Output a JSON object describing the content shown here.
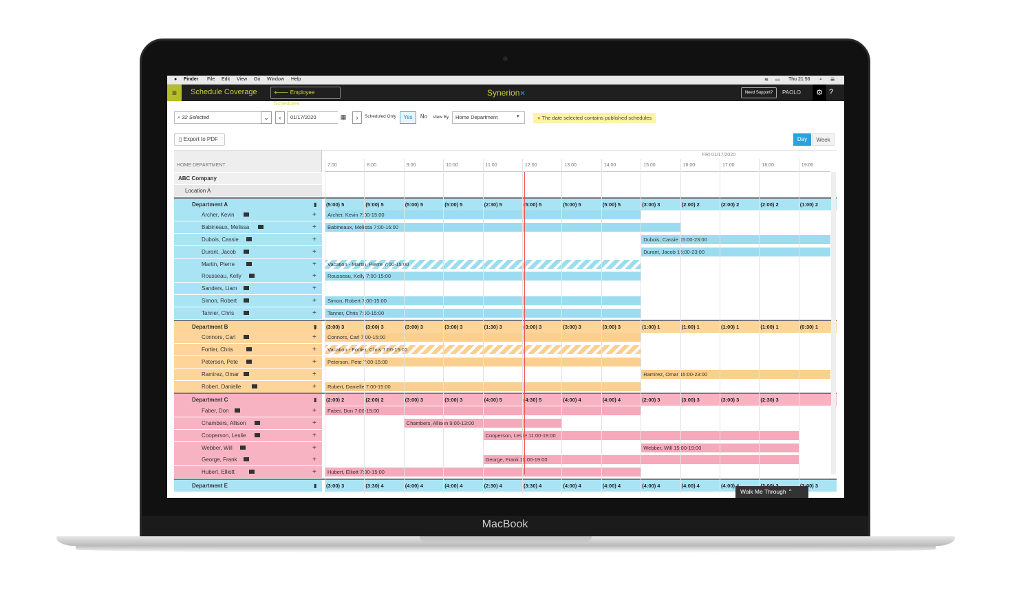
{
  "device": {
    "label": "MacBook"
  },
  "macbar": {
    "apple": "",
    "items": [
      "Finder",
      "File",
      "Edit",
      "View",
      "Go",
      "Window",
      "Help"
    ],
    "clock": "Thu 21:56"
  },
  "app": {
    "title": "Schedule Coverage",
    "back_button": "Employee Schedules",
    "logo": "Synerion",
    "support": "Need Support?",
    "user": "PAOLO",
    "help": "?"
  },
  "filters": {
    "selection": "32 Selected",
    "date": "01/17/2020",
    "scheduled_only_label": "Scheduled Only",
    "yes": "Yes",
    "no": "No",
    "view_by_label": "View By",
    "view_by_value": "Home Department",
    "notice": "The date selected contains published schedules"
  },
  "toolbar": {
    "export": "Export to PDF",
    "day": "Day",
    "week": "Week"
  },
  "grid": {
    "left_header": "HOME DEPARTMENT",
    "date_label": "FRI 01/17/2020",
    "hours": [
      "7:00",
      "8:00",
      "9:00",
      "10:00",
      "11:00",
      "12:00",
      "13:00",
      "14:00",
      "15:00",
      "16:00",
      "17:00",
      "18:00",
      "19:00"
    ]
  },
  "tree": {
    "company": "ABC Company",
    "location": "Location A"
  },
  "departments": [
    {
      "name": "Department A",
      "color": "#a9e4f5",
      "barColor": "#9cdcf0",
      "counts": [
        "(5:00) 5",
        "(5:00) 5",
        "(5:00) 5",
        "(5:00) 5",
        "(2:30) 5",
        "(5:00) 5",
        "(5:00) 5",
        "(5:00) 5",
        "(3:00) 3",
        "(2:00) 2",
        "(2:00) 2",
        "(2:00) 2",
        "(1:00) 2"
      ],
      "employees": [
        {
          "name": "Archer, Kevin",
          "shift": "Archer, Kevin   7:00-15:00",
          "start": 7,
          "end": 15,
          "vac": false
        },
        {
          "name": "Babineaux, Melissa",
          "shift": "Babineaux, Melissa   7:00-16:00",
          "start": 7,
          "end": 16,
          "vac": false
        },
        {
          "name": "Dubois, Cassie",
          "shift": "Dubois, Cassie   15:00-23:00",
          "start": 15,
          "end": 19.8,
          "vac": false
        },
        {
          "name": "Durant, Jacob",
          "shift": "Durant, Jacob   15:00-23:00",
          "start": 15,
          "end": 19.8,
          "vac": false
        },
        {
          "name": "Martin, Pierre",
          "shift": "Vacation - Martin, Pierre   7:00-15:00",
          "start": 7,
          "end": 15,
          "vac": true
        },
        {
          "name": "Rousseau, Kelly",
          "shift": "Rousseau, Kelly   7:00-15:00",
          "start": 7,
          "end": 15,
          "vac": false
        },
        {
          "name": "Sanders, Liam",
          "shift": "",
          "start": 0,
          "end": 0,
          "vac": false
        },
        {
          "name": "Simon, Robert",
          "shift": "Simon, Robert   7:00-15:00",
          "start": 7,
          "end": 15,
          "vac": false
        },
        {
          "name": "Tanner, Chris",
          "shift": "Tanner, Chris   7:00-15:00",
          "start": 7,
          "end": 15,
          "vac": false
        }
      ]
    },
    {
      "name": "Department B",
      "color": "#fdd49a",
      "barColor": "#fbcf8f",
      "counts": [
        "(3:00) 3",
        "(3:00) 3",
        "(3:00) 3",
        "(3:00) 3",
        "(1:30) 3",
        "(3:00) 3",
        "(3:00) 3",
        "(3:00) 3",
        "(1:00) 1",
        "(1:00) 1",
        "(1:00) 1",
        "(1:00) 1",
        "(0:30) 1"
      ],
      "employees": [
        {
          "name": "Connors, Carl",
          "shift": "Connors, Carl   7:00-15:00",
          "start": 7,
          "end": 15,
          "vac": false
        },
        {
          "name": "Fortier, Chris",
          "shift": "Vacation - Fortier, Chris   7:00-15:00",
          "start": 7,
          "end": 15,
          "vac": true
        },
        {
          "name": "Peterson, Pete",
          "shift": "Peterson, Pete   7:00-15:00",
          "start": 7,
          "end": 15,
          "vac": false
        },
        {
          "name": "Ramirez, Omar",
          "shift": "Ramirez, Omar   15:00-23:00",
          "start": 15,
          "end": 19.8,
          "vac": false
        },
        {
          "name": "Robert, Danielle",
          "shift": "Robert, Danielle   7:00-15:00",
          "start": 7,
          "end": 15,
          "vac": false
        }
      ]
    },
    {
      "name": "Department C",
      "color": "#f8b3c3",
      "barColor": "#f5a9bb",
      "counts": [
        "(2:00) 2",
        "(2:00) 2",
        "(3:00) 3",
        "(3:00) 3",
        "(4:00) 5",
        "(4:30) 5",
        "(4:00) 4",
        "(4:00) 4",
        "(2:00) 3",
        "(3:00) 3",
        "(3:00) 3",
        "(2:30) 3",
        ""
      ],
      "employees": [
        {
          "name": "Faber, Don",
          "shift": "Faber, Don   7:00-15:00",
          "start": 7,
          "end": 15,
          "vac": false
        },
        {
          "name": "Chambers, Allison",
          "shift": "Chambers, Allison   9:00-13:00",
          "start": 9,
          "end": 13,
          "vac": false
        },
        {
          "name": "Cooperson, Leslie",
          "shift": "Cooperson, Leslie   11:00-19:00",
          "start": 11,
          "end": 19,
          "vac": false
        },
        {
          "name": "Webber, Will",
          "shift": "Webber, Will   15:00-19:00",
          "start": 15,
          "end": 19,
          "vac": false
        },
        {
          "name": "George, Frank",
          "shift": "George, Frank   11:00-19:00",
          "start": 11,
          "end": 19,
          "vac": false
        },
        {
          "name": "Hubert, Elliott",
          "shift": "Hubert, Elliott   7:00-15:00",
          "start": 7,
          "end": 15,
          "vac": false
        }
      ]
    },
    {
      "name": "Department E",
      "color": "#a9e4f5",
      "barColor": "#9cdcf0",
      "counts": [
        "(3:00) 3",
        "(3:30) 4",
        "(4:00) 4",
        "(4:00) 4",
        "(2:30) 4",
        "(3:30) 4",
        "(4:00) 4",
        "(4:00) 4",
        "(4:00) 4",
        "(4:00) 4",
        "(4:00) 4",
        "(3:00) 3",
        "(3:00) 3"
      ],
      "employees": []
    }
  ],
  "walkthrough": "Walk Me Through"
}
